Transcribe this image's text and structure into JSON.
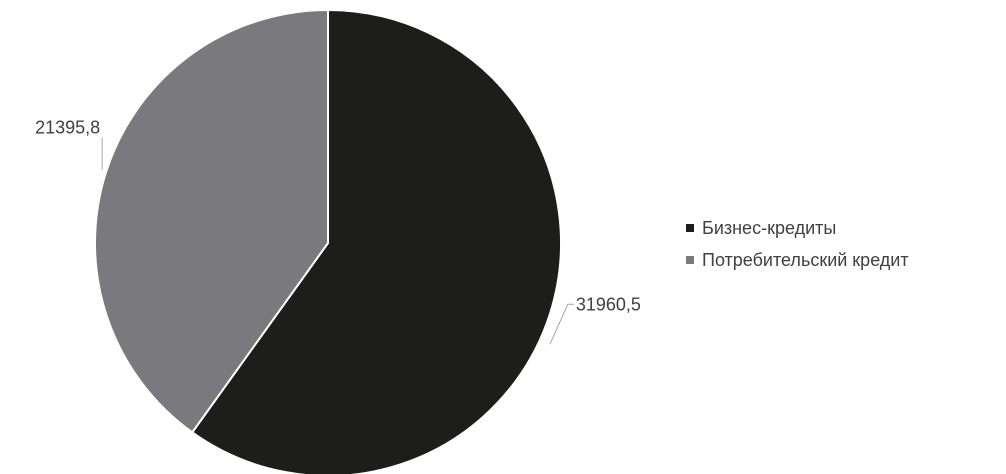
{
  "chart_data": {
    "type": "pie",
    "categories": [
      "Бизнес-кредиты",
      "Потребительский кредит"
    ],
    "values": [
      31960.5,
      21395.8
    ],
    "value_labels": [
      "31960,5",
      "21395,8"
    ],
    "colors": [
      "#1d1d1b",
      "#7a7a7e"
    ],
    "start_angle_deg": 0,
    "direction": "clockwise",
    "legend_position": "right",
    "title": ""
  }
}
